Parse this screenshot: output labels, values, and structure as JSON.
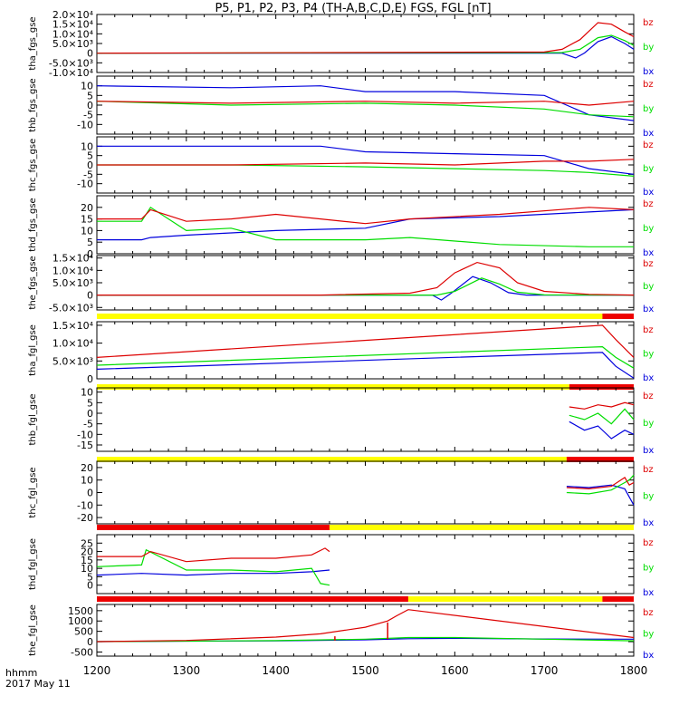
{
  "title": "P5, P1, P2, P3, P4 (TH-A,B,C,D,E) FGS, FGL [nT]",
  "x_axis": {
    "unit_label": "hhmm",
    "date_label": "2017 May 11",
    "ticks": [
      "1200",
      "1300",
      "1400",
      "1500",
      "1600",
      "1700",
      "1800"
    ]
  },
  "colors": {
    "bz": "#dd0000",
    "by": "#00dd00",
    "bx": "#0000dd",
    "bar_yellow": "#ffff00",
    "bar_red": "#ee0000"
  },
  "chart_data": [
    {
      "type": "line",
      "ylabel": "tha_fgs_gse",
      "ylim": [
        -10000,
        20000
      ],
      "ytick_labels": [
        "2.0×10⁴",
        "1.5×10⁴",
        "1.0×10⁴",
        "5.0×10³",
        "0",
        "-5.0×10³",
        "-1.0×10⁴"
      ],
      "ytick_values": [
        20000,
        15000,
        10000,
        5000,
        0,
        -5000,
        -10000
      ],
      "series": [
        {
          "name": "bz",
          "x": [
            1200,
            1700,
            1720,
            1740,
            1760,
            1775,
            1790,
            1800
          ],
          "y": [
            0,
            600,
            2000,
            7000,
            15800,
            15000,
            11000,
            8500
          ]
        },
        {
          "name": "by",
          "x": [
            1200,
            1720,
            1740,
            1760,
            1775,
            1790,
            1800
          ],
          "y": [
            0,
            300,
            2000,
            8000,
            9200,
            6500,
            4000
          ]
        },
        {
          "name": "bx",
          "x": [
            1200,
            1720,
            1735,
            1745,
            1760,
            1775,
            1790,
            1800
          ],
          "y": [
            0,
            0,
            -2500,
            100,
            6000,
            8500,
            5000,
            2000
          ]
        }
      ]
    },
    {
      "type": "line",
      "ylabel": "thb_fgs_gse",
      "ylim": [
        -15,
        15
      ],
      "ytick_labels": [
        "10",
        "5",
        "0",
        "-5",
        "-10"
      ],
      "ytick_values": [
        10,
        5,
        0,
        -5,
        -10
      ],
      "series": [
        {
          "name": "bz",
          "x": [
            1200,
            1350,
            1500,
            1600,
            1700,
            1750,
            1800
          ],
          "y": [
            2,
            1,
            2,
            1,
            2,
            0,
            2
          ]
        },
        {
          "name": "by",
          "x": [
            1200,
            1350,
            1500,
            1600,
            1700,
            1750,
            1800
          ],
          "y": [
            2,
            0,
            1,
            0,
            -2,
            -5,
            -6
          ]
        },
        {
          "name": "bx",
          "x": [
            1200,
            1350,
            1450,
            1500,
            1600,
            1700,
            1750,
            1800
          ],
          "y": [
            10,
            9,
            10,
            7,
            7,
            5,
            -5,
            -8
          ]
        }
      ]
    },
    {
      "type": "line",
      "ylabel": "thc_fgs_gse",
      "ylim": [
        -15,
        15
      ],
      "ytick_labels": [
        "10",
        "5",
        "0",
        "-5",
        "-10"
      ],
      "ytick_values": [
        10,
        5,
        0,
        -5,
        -10
      ],
      "series": [
        {
          "name": "bz",
          "x": [
            1200,
            1350,
            1500,
            1600,
            1700,
            1750,
            1800
          ],
          "y": [
            0,
            0,
            1,
            0,
            2,
            2,
            3
          ]
        },
        {
          "name": "by",
          "x": [
            1200,
            1350,
            1500,
            1600,
            1700,
            1750,
            1800
          ],
          "y": [
            0,
            0,
            -1,
            -2,
            -3,
            -4,
            -6
          ]
        },
        {
          "name": "bx",
          "x": [
            1200,
            1350,
            1450,
            1500,
            1600,
            1700,
            1750,
            1800
          ],
          "y": [
            10,
            10,
            10,
            7,
            6,
            5,
            -2,
            -5
          ]
        }
      ]
    },
    {
      "type": "line",
      "ylabel": "thd_fgs_gse",
      "ylim": [
        0,
        25
      ],
      "ytick_labels": [
        "20",
        "15",
        "10",
        "5",
        "0"
      ],
      "ytick_values": [
        20,
        15,
        10,
        5,
        0
      ],
      "series": [
        {
          "name": "bz",
          "x": [
            1200,
            1250,
            1260,
            1300,
            1350,
            1400,
            1500,
            1550,
            1650,
            1750,
            1800
          ],
          "y": [
            15,
            15,
            19,
            14,
            15,
            17,
            13,
            15,
            17,
            20,
            19
          ]
        },
        {
          "name": "by",
          "x": [
            1200,
            1250,
            1260,
            1300,
            1350,
            1400,
            1500,
            1550,
            1650,
            1750,
            1800
          ],
          "y": [
            14,
            14,
            20,
            10,
            11,
            6,
            6,
            7,
            4,
            3,
            3
          ]
        },
        {
          "name": "bx",
          "x": [
            1200,
            1250,
            1260,
            1300,
            1350,
            1400,
            1500,
            1550,
            1650,
            1750,
            1800
          ],
          "y": [
            6,
            6,
            7,
            8,
            9,
            10,
            11,
            15,
            16,
            18,
            19
          ]
        }
      ]
    },
    {
      "type": "line",
      "ylabel": "the_fgs_gse",
      "ylim": [
        -6000,
        16000
      ],
      "ytick_labels": [
        "1.5×10⁴",
        "1.0×10⁴",
        "5.0×10³",
        "0",
        "-5.0×10³"
      ],
      "ytick_values": [
        15000,
        10000,
        5000,
        0,
        -5000
      ],
      "series": [
        {
          "name": "bz",
          "x": [
            1200,
            1450,
            1550,
            1580,
            1600,
            1625,
            1650,
            1670,
            1700,
            1750,
            1800
          ],
          "y": [
            0,
            0,
            800,
            3000,
            9000,
            13200,
            11000,
            5000,
            1500,
            300,
            0
          ]
        },
        {
          "name": "by",
          "x": [
            1200,
            1580,
            1600,
            1630,
            1650,
            1670,
            1700,
            1800
          ],
          "y": [
            0,
            0,
            1500,
            6900,
            4500,
            1200,
            100,
            0
          ]
        },
        {
          "name": "bx",
          "x": [
            1200,
            1575,
            1585,
            1595,
            1620,
            1640,
            1660,
            1680,
            1800
          ],
          "y": [
            0,
            0,
            -2000,
            500,
            7500,
            5000,
            1000,
            0,
            0
          ]
        }
      ],
      "status_bar": [
        {
          "from": 1200,
          "to": 1765,
          "color": "yellow"
        },
        {
          "from": 1765,
          "to": 1800,
          "color": "red"
        }
      ]
    },
    {
      "type": "line",
      "ylabel": "tha_fgl_gse",
      "ylim": [
        0,
        16000
      ],
      "ytick_labels": [
        "1.5×10⁴",
        "1.0×10⁴",
        "5.0×10³",
        "0"
      ],
      "ytick_values": [
        15000,
        10000,
        5000,
        0
      ],
      "series": [
        {
          "name": "bz",
          "x": [
            1200,
            1765,
            1780,
            1800
          ],
          "y": [
            6000,
            15000,
            11000,
            6000
          ]
        },
        {
          "name": "by",
          "x": [
            1200,
            1765,
            1780,
            1800
          ],
          "y": [
            3800,
            9000,
            6000,
            3000
          ]
        },
        {
          "name": "bx",
          "x": [
            1200,
            1765,
            1780,
            1800
          ],
          "y": [
            2700,
            7400,
            3500,
            200
          ]
        }
      ],
      "status_bar": [
        {
          "from": 1200,
          "to": 1728,
          "color": "yellow"
        },
        {
          "from": 1728,
          "to": 1800,
          "color": "red"
        }
      ]
    },
    {
      "type": "line",
      "ylabel": "thb_fgl_gse",
      "ylim": [
        -18,
        12
      ],
      "ytick_labels": [
        "10",
        "5",
        "0",
        "-5",
        "-10",
        "-15"
      ],
      "ytick_values": [
        10,
        5,
        0,
        -5,
        -10,
        -15
      ],
      "series": [
        {
          "name": "bz",
          "x": [
            1728,
            1745,
            1760,
            1775,
            1790,
            1800
          ],
          "y": [
            3,
            2,
            4,
            3,
            5,
            4
          ]
        },
        {
          "name": "by",
          "x": [
            1728,
            1745,
            1760,
            1775,
            1790,
            1800
          ],
          "y": [
            -1,
            -3,
            0,
            -5,
            2,
            -3
          ]
        },
        {
          "name": "bx",
          "x": [
            1728,
            1745,
            1760,
            1775,
            1790,
            1800
          ],
          "y": [
            -4,
            -8,
            -6,
            -12,
            -8,
            -10
          ]
        }
      ],
      "status_bar": [
        {
          "from": 1200,
          "to": 1725,
          "color": "yellow"
        },
        {
          "from": 1725,
          "to": 1800,
          "color": "red"
        }
      ]
    },
    {
      "type": "line",
      "ylabel": "thc_fgl_gse",
      "ylim": [
        -25,
        25
      ],
      "ytick_labels": [
        "20",
        "10",
        "0",
        "-10",
        "-20"
      ],
      "ytick_values": [
        20,
        10,
        0,
        -10,
        -20
      ],
      "series": [
        {
          "name": "bz",
          "x": [
            1725,
            1750,
            1775,
            1790,
            1795,
            1800
          ],
          "y": [
            4,
            3,
            5,
            12,
            6,
            8
          ]
        },
        {
          "name": "by",
          "x": [
            1725,
            1750,
            1775,
            1790,
            1795,
            1800
          ],
          "y": [
            0,
            -1,
            2,
            8,
            10,
            14
          ]
        },
        {
          "name": "bx",
          "x": [
            1725,
            1750,
            1775,
            1790,
            1800
          ],
          "y": [
            5,
            4,
            6,
            3,
            -10
          ]
        }
      ],
      "status_bar": [
        {
          "from": 1200,
          "to": 1460,
          "color": "red"
        },
        {
          "from": 1460,
          "to": 1800,
          "color": "yellow"
        }
      ]
    },
    {
      "type": "line",
      "ylabel": "thd_fgl_gse",
      "ylim": [
        -5,
        30
      ],
      "ytick_labels": [
        "25",
        "20",
        "15",
        "10",
        "5",
        "0"
      ],
      "ytick_values": [
        25,
        20,
        15,
        10,
        5,
        0
      ],
      "series": [
        {
          "name": "bz",
          "x": [
            1200,
            1250,
            1260,
            1300,
            1350,
            1400,
            1440,
            1455,
            1460
          ],
          "y": [
            17,
            17,
            20,
            14,
            16,
            16,
            18,
            22,
            20
          ]
        },
        {
          "name": "by",
          "x": [
            1200,
            1250,
            1255,
            1300,
            1350,
            1400,
            1440,
            1450,
            1460
          ],
          "y": [
            11,
            12,
            21,
            9,
            9,
            8,
            10,
            1,
            0
          ]
        },
        {
          "name": "bx",
          "x": [
            1200,
            1250,
            1300,
            1350,
            1400,
            1440,
            1460
          ],
          "y": [
            6,
            7,
            6,
            7,
            7,
            8,
            9
          ]
        }
      ],
      "status_bar": [
        {
          "from": 1200,
          "to": 1548,
          "color": "red"
        },
        {
          "from": 1548,
          "to": 1765,
          "color": "yellow"
        },
        {
          "from": 1765,
          "to": 1800,
          "color": "red"
        }
      ]
    },
    {
      "type": "line",
      "ylabel": "the_fgl_gse",
      "ylim": [
        -700,
        1800
      ],
      "ytick_labels": [
        "1500",
        "1000",
        "500",
        "0",
        "-500"
      ],
      "ytick_values": [
        1500,
        1000,
        500,
        0,
        -500
      ],
      "series": [
        {
          "name": "bz",
          "x": [
            1200,
            1300,
            1400,
            1450,
            1500,
            1525,
            1535,
            1548,
            1800
          ],
          "y": [
            0,
            60,
            220,
            380,
            700,
            1000,
            1250,
            1550,
            200
          ]
        },
        {
          "name": "by",
          "x": [
            1200,
            1400,
            1500,
            1548,
            1600,
            1700,
            1800
          ],
          "y": [
            0,
            50,
            120,
            200,
            200,
            120,
            40
          ]
        },
        {
          "name": "bx",
          "x": [
            1200,
            1400,
            1500,
            1548,
            1600,
            1700,
            1800
          ],
          "y": [
            0,
            40,
            90,
            140,
            160,
            130,
            120
          ]
        }
      ],
      "spikes": [
        {
          "x": 1466,
          "from": 50,
          "to": 260
        },
        {
          "x": 1525,
          "from": 120,
          "to": 930
        }
      ]
    }
  ]
}
